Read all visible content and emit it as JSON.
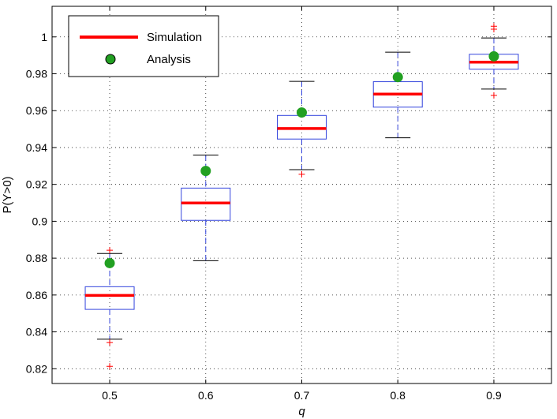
{
  "chart_data": {
    "type": "box",
    "title": "",
    "xlabel": "q",
    "ylabel": "P(Y>0)",
    "xlim": [
      0.44,
      0.96
    ],
    "ylim": [
      0.812,
      1.0166
    ],
    "grid": true,
    "xticks": [
      0.5,
      0.6,
      0.7,
      0.8,
      0.9
    ],
    "xtick_labels": [
      "0.5",
      "0.6",
      "0.7",
      "0.8",
      "0.9"
    ],
    "yticks": [
      0.82,
      0.84,
      0.86,
      0.88,
      0.9,
      0.92,
      0.94,
      0.96,
      0.98,
      1.0
    ],
    "ytick_labels": [
      "0.82",
      "0.84",
      "0.86",
      "0.88",
      "0.9",
      "0.92",
      "0.94",
      "0.96",
      "0.98",
      "1"
    ],
    "legend": {
      "position": "top-left",
      "entries": [
        {
          "label": "Simulation",
          "marker": "line",
          "color": "#ff0000"
        },
        {
          "label": "Analysis",
          "marker": "circle",
          "color": "#22a022"
        }
      ]
    },
    "series": [
      {
        "name": "Simulation",
        "kind": "boxplot",
        "box_color": "#3344dd",
        "median_color": "#ff0000",
        "outlier_color": "#ff0000",
        "boxes": [
          {
            "x": 0.5,
            "whisker_low": 0.836,
            "q1": 0.8522,
            "median": 0.8598,
            "q3": 0.8645,
            "whisker_high": 0.8825,
            "outliers": [
              0.8843,
              0.8342,
              0.8213
            ]
          },
          {
            "x": 0.6,
            "whisker_low": 0.8786,
            "q1": 0.9005,
            "median": 0.9099,
            "q3": 0.918,
            "whisker_high": 0.9359,
            "outliers": []
          },
          {
            "x": 0.7,
            "whisker_low": 0.928,
            "q1": 0.9446,
            "median": 0.9503,
            "q3": 0.9574,
            "whisker_high": 0.9759,
            "outliers": [
              0.9255
            ]
          },
          {
            "x": 0.8,
            "whisker_low": 0.9453,
            "q1": 0.9619,
            "median": 0.969,
            "q3": 0.9757,
            "whisker_high": 0.9917,
            "outliers": []
          },
          {
            "x": 0.9,
            "whisker_low": 0.9717,
            "q1": 0.9825,
            "median": 0.9863,
            "q3": 0.9906,
            "whisker_high": 0.9994,
            "outliers": [
              1.0058,
              1.0042,
              0.9683
            ]
          }
        ]
      },
      {
        "name": "Analysis",
        "kind": "scatter",
        "color": "#22a022",
        "x": [
          0.5,
          0.6,
          0.7,
          0.8,
          0.9
        ],
        "y": [
          0.8773,
          0.9273,
          0.959,
          0.9782,
          0.9895
        ]
      }
    ]
  }
}
